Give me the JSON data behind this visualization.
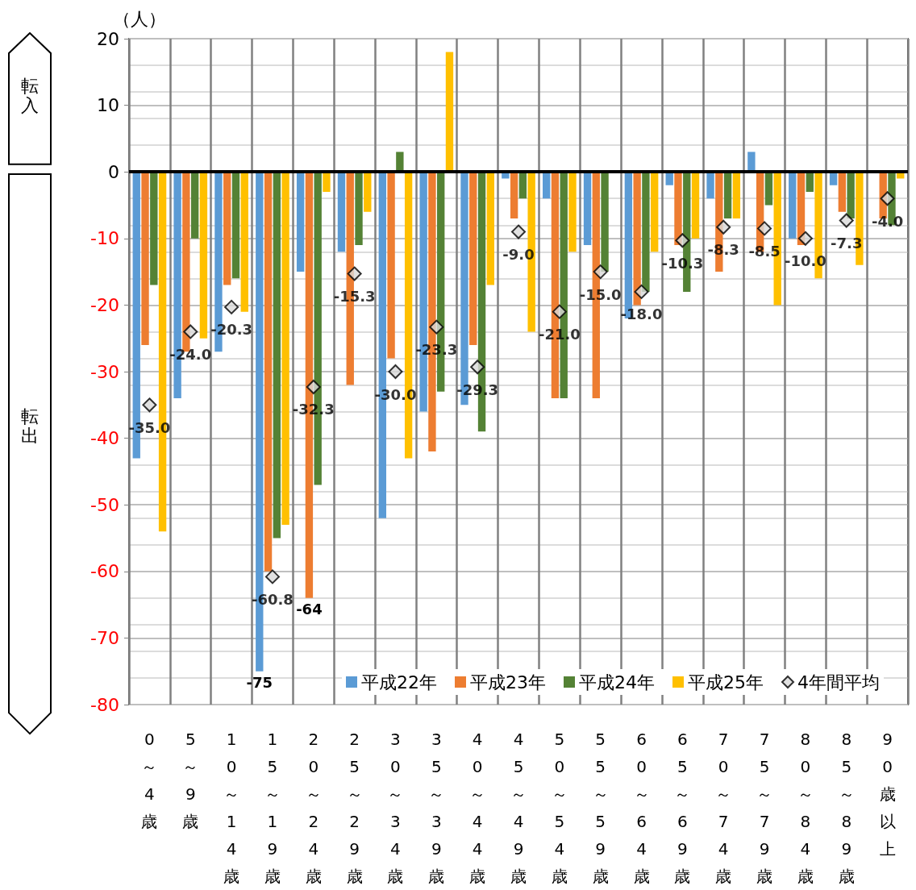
{
  "chart_data": {
    "type": "bar",
    "ylabel": "（人）",
    "categories": [
      "0～4歳",
      "5～9歳",
      "10～14歳",
      "15～19歳",
      "20～24歳",
      "25～29歳",
      "30～34歳",
      "35～39歳",
      "40～44歳",
      "45～49歳",
      "50～54歳",
      "55～59歳",
      "60～64歳",
      "65～69歳",
      "70～74歳",
      "75～79歳",
      "80～84歳",
      "85～89歳",
      "90歳以上"
    ],
    "series": [
      {
        "name": "平成22年",
        "color": "#5b9bd5",
        "values": [
          -43,
          -34,
          -27,
          -75,
          -15,
          -12,
          -52,
          -36,
          -35,
          -1,
          -4,
          -11,
          -22,
          -2,
          -4,
          3,
          -10,
          -2,
          0
        ],
        "value_labels": [
          null,
          null,
          null,
          "-75",
          null,
          null,
          null,
          null,
          null,
          null,
          null,
          null,
          null,
          null,
          null,
          null,
          null,
          null,
          null
        ]
      },
      {
        "name": "平成23年",
        "color": "#ed7d31",
        "values": [
          -26,
          -27,
          -17,
          -60,
          -64,
          -32,
          -28,
          -42,
          -26,
          -7,
          -34,
          -34,
          -20,
          -11,
          -15,
          -12,
          -11,
          -6,
          -7
        ],
        "value_labels": [
          null,
          null,
          null,
          null,
          "-64",
          null,
          null,
          null,
          null,
          null,
          null,
          null,
          null,
          null,
          null,
          null,
          null,
          null,
          null
        ]
      },
      {
        "name": "平成24年",
        "color": "#548235",
        "values": [
          -17,
          -10,
          -16,
          -55,
          -47,
          -11,
          3,
          -33,
          -39,
          -4,
          -34,
          -15,
          -18,
          -18,
          -7,
          -5,
          -3,
          -7,
          -8
        ]
      },
      {
        "name": "平成25年",
        "color": "#ffc000",
        "values": [
          -54,
          -25,
          -21,
          -53,
          -3,
          -6,
          -43,
          18,
          -17,
          -24,
          -12,
          0,
          -12,
          -10,
          -7,
          -20,
          -16,
          -14,
          -1
        ]
      },
      {
        "name": "4年間平均",
        "type": "scatter",
        "color": "#d9d9d9",
        "marker": "diamond",
        "values": [
          -35.0,
          -24.0,
          -20.3,
          -60.8,
          -32.3,
          -15.3,
          -30.0,
          -23.3,
          -29.3,
          -9.0,
          -21.0,
          -15.0,
          -18.0,
          -10.3,
          -8.3,
          -8.5,
          -10.0,
          -7.3,
          -4.0
        ],
        "value_labels": [
          "-35.0",
          "-24.0",
          "-20.3",
          "-60.8",
          "-32.3",
          "-15.3",
          "-30.0",
          "-23.3",
          "-29.3",
          "-9.0",
          "-21.0",
          "-15.0",
          "-18.0",
          "-10.3",
          "-8.3",
          "-8.5",
          "-10.0",
          "-7.3",
          "-4.0"
        ]
      }
    ],
    "ylim": [
      -80,
      20
    ],
    "yticks": [
      -80,
      -70,
      -60,
      -50,
      -40,
      -30,
      -20,
      -10,
      0,
      10,
      20
    ],
    "grid": true,
    "legend": "bottom right",
    "annotations": [
      "転入",
      "転出"
    ]
  }
}
